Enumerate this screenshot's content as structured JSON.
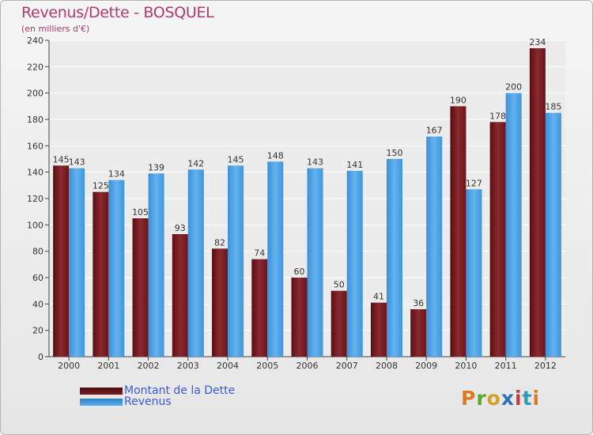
{
  "chart_data": {
    "type": "bar",
    "title": "Revenus/Dette - BOSQUEL",
    "subtitle": "(en milliers d'€)",
    "categories": [
      "2000",
      "2001",
      "2002",
      "2003",
      "2004",
      "2005",
      "2006",
      "2007",
      "2008",
      "2009",
      "2010",
      "2011",
      "2012"
    ],
    "series": [
      {
        "name": "Montant de la Dette",
        "values": [
          145,
          125,
          105,
          93,
          82,
          74,
          60,
          50,
          41,
          36,
          190,
          178,
          234
        ],
        "color": "#7a1e24"
      },
      {
        "name": "Revenus",
        "values": [
          143,
          134,
          139,
          142,
          145,
          148,
          143,
          141,
          150,
          167,
          127,
          200,
          185
        ],
        "color": "#4aa3e6"
      }
    ],
    "ylim": [
      0,
      240
    ],
    "yticks": [
      0,
      20,
      40,
      60,
      80,
      100,
      120,
      140,
      160,
      180,
      200,
      220,
      240
    ],
    "grid": true,
    "legend_position": "bottom-left"
  },
  "logo": {
    "text": "Proxiti"
  }
}
